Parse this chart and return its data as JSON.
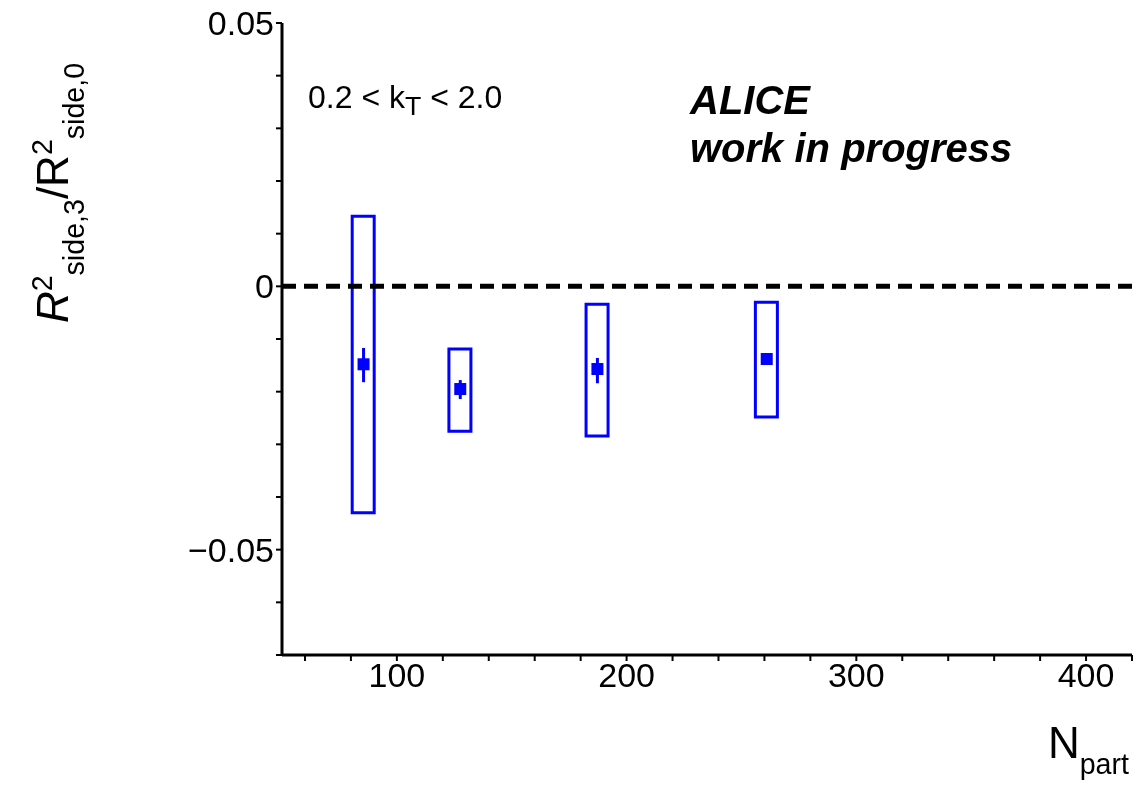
{
  "chart_data": {
    "type": "scatter",
    "xlabel": "N$_{part}$",
    "ylabel": "R$^{2}$$_{side,3}$/R$^{2}$$_{side,0}$",
    "x": [
      85.5,
      127.6,
      187.3,
      261
    ],
    "series": [
      {
        "type": "bar",
        "color": "#0000ff",
        "base": [
          -0.043,
          -0.0275,
          -0.0284,
          -0.0248
        ],
        "values": [
          0.0563,
          0.0156,
          0.025,
          0.0218
        ]
      },
      {
        "color": "#0000ff",
        "values": [
          -0.0148,
          -0.0195,
          -0.0157,
          -0.0138
        ],
        "errors": [
          [
            -0.0182,
            -0.0117
          ],
          [
            -0.0214,
            -0.0178
          ],
          [
            -0.0184,
            -0.0136
          ],
          null
        ]
      }
    ],
    "marker": "square",
    "xlim": [
      50,
      420
    ],
    "xticks": [
      {
        "value": 60,
        "label": null
      },
      {
        "value": 80,
        "label": null
      },
      100,
      {
        "value": 120,
        "label": null
      },
      {
        "value": 140,
        "label": null
      },
      {
        "value": 160,
        "label": null
      },
      {
        "value": 180,
        "label": null
      },
      200,
      {
        "value": 220,
        "label": null
      },
      {
        "value": 240,
        "label": null
      },
      {
        "value": 260,
        "label": null
      },
      {
        "value": 280,
        "label": null
      },
      300,
      {
        "value": 320,
        "label": null
      },
      {
        "value": 340,
        "label": null
      },
      {
        "value": 360,
        "label": null
      },
      {
        "value": 380,
        "label": null
      },
      400,
      {
        "value": 420,
        "label": null
      }
    ],
    "ylim": [
      -0.07,
      0.05
    ],
    "yticks": [
      {
        "value": -0.07,
        "label": null
      },
      {
        "value": -0.06,
        "label": null
      },
      {
        "value": -0.05,
        "label": "−0.05"
      },
      {
        "value": -0.04,
        "label": null
      },
      {
        "value": -0.03,
        "label": null
      },
      {
        "value": -0.02,
        "label": null
      },
      {
        "value": -0.01,
        "label": null
      },
      0,
      {
        "value": 0.01,
        "label": null
      },
      {
        "value": 0.02,
        "label": null
      },
      {
        "value": 0.03,
        "label": null
      },
      {
        "value": 0.04,
        "label": null
      },
      0.05
    ],
    "ref_lines": [
      {
        "axis": "y",
        "value": 0,
        "color": "#000000",
        "line_style": "dashed"
      }
    ],
    "annotations": [
      "0.2 < k$_{T}$ < 2.0",
      "ALICE",
      "work in progress"
    ]
  }
}
